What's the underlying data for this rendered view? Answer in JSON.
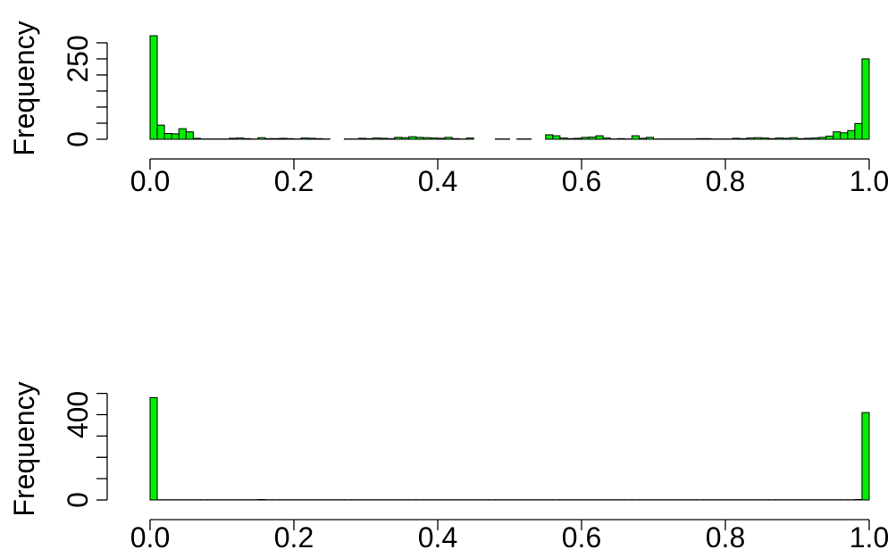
{
  "chart_data": [
    {
      "type": "bar",
      "subtype": "histogram",
      "ylabel": "Frequency",
      "xlim": [
        0,
        1
      ],
      "ylim": [
        0,
        322
      ],
      "bin_width": 0.01,
      "x_ticks": [
        0.0,
        0.2,
        0.4,
        0.6,
        0.8,
        1.0
      ],
      "x_tick_labels": [
        "0.0",
        "0.2",
        "0.4",
        "0.6",
        "0.8",
        "1.0"
      ],
      "y_ticks": [
        0,
        50,
        100,
        150,
        200,
        250,
        300
      ],
      "y_tick_labels": [
        "0",
        "",
        "",
        "",
        "",
        "250",
        ""
      ],
      "bar_color": "#00ee00",
      "values": [
        322,
        44,
        18,
        17,
        33,
        23,
        3,
        1,
        1,
        1,
        1,
        3,
        4,
        2,
        1,
        5,
        2,
        2,
        3,
        2,
        1,
        4,
        3,
        2,
        1,
        0,
        0,
        1,
        1,
        3,
        2,
        4,
        3,
        2,
        6,
        5,
        8,
        6,
        5,
        4,
        3,
        6,
        2,
        1,
        4,
        0,
        0,
        0,
        1,
        1,
        0,
        1,
        1,
        0,
        0,
        14,
        11,
        4,
        2,
        3,
        6,
        7,
        11,
        4,
        1,
        2,
        1,
        11,
        3,
        6,
        1,
        1,
        1,
        1,
        1,
        1,
        2,
        2,
        1,
        1,
        1,
        3,
        2,
        4,
        5,
        4,
        2,
        4,
        3,
        5,
        2,
        3,
        4,
        6,
        10,
        23,
        20,
        27,
        49,
        250
      ],
      "grid": false,
      "legend": "none"
    },
    {
      "type": "bar",
      "subtype": "histogram",
      "ylabel": "Frequency",
      "xlim": [
        0,
        1
      ],
      "ylim": [
        0,
        490
      ],
      "bin_width": 0.01,
      "x_ticks": [
        0.0,
        0.2,
        0.4,
        0.6,
        0.8,
        1.0
      ],
      "x_tick_labels": [
        "0.0",
        "0.2",
        "0.4",
        "0.6",
        "0.8",
        "1.0"
      ],
      "y_ticks": [
        0,
        100,
        200,
        300,
        400,
        500
      ],
      "y_tick_labels": [
        "0",
        "",
        "",
        "",
        "400",
        ""
      ],
      "bar_color": "#00ee00",
      "values": [
        480,
        1,
        1,
        1,
        1,
        1,
        1,
        1,
        1,
        1,
        1,
        1,
        1,
        1,
        1,
        2,
        1,
        1,
        1,
        1,
        1,
        1,
        1,
        1,
        1,
        1,
        1,
        1,
        1,
        1,
        1,
        1,
        1,
        1,
        1,
        1,
        1,
        1,
        1,
        1,
        1,
        1,
        1,
        1,
        1,
        1,
        1,
        1,
        1,
        1,
        1,
        1,
        1,
        1,
        1,
        1,
        1,
        1,
        1,
        1,
        1,
        1,
        1,
        1,
        1,
        1,
        1,
        1,
        1,
        1,
        1,
        1,
        1,
        1,
        1,
        1,
        1,
        1,
        1,
        1,
        1,
        1,
        1,
        1,
        1,
        1,
        1,
        1,
        1,
        1,
        1,
        1,
        1,
        1,
        1,
        1,
        1,
        1,
        2,
        410
      ],
      "grid": false,
      "legend": "none"
    }
  ]
}
